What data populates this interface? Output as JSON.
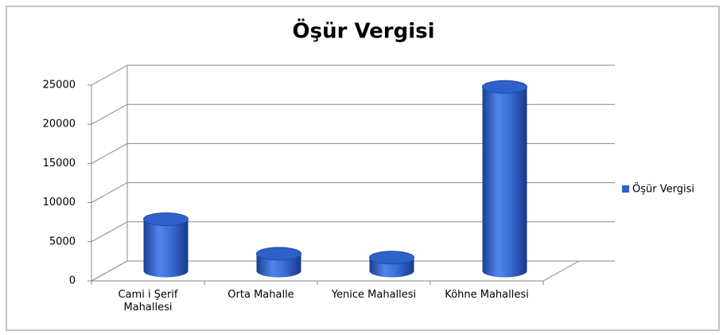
{
  "chart_data": {
    "type": "bar",
    "title": "Öşür Vergisi",
    "categories": [
      "Cami i Şerif Mahallesi",
      "Orta Mahalle",
      "Yenice Mahallesi",
      "Köhne Mahallesi"
    ],
    "series": [
      {
        "name": "Öşür Vergisi",
        "color": "#2e62c9",
        "values": [
          6600,
          2200,
          1700,
          23500
        ]
      }
    ],
    "ylim": [
      0,
      25000
    ],
    "yticks": [
      0,
      5000,
      10000,
      15000,
      20000,
      25000
    ],
    "grid": true,
    "legend": "right"
  }
}
